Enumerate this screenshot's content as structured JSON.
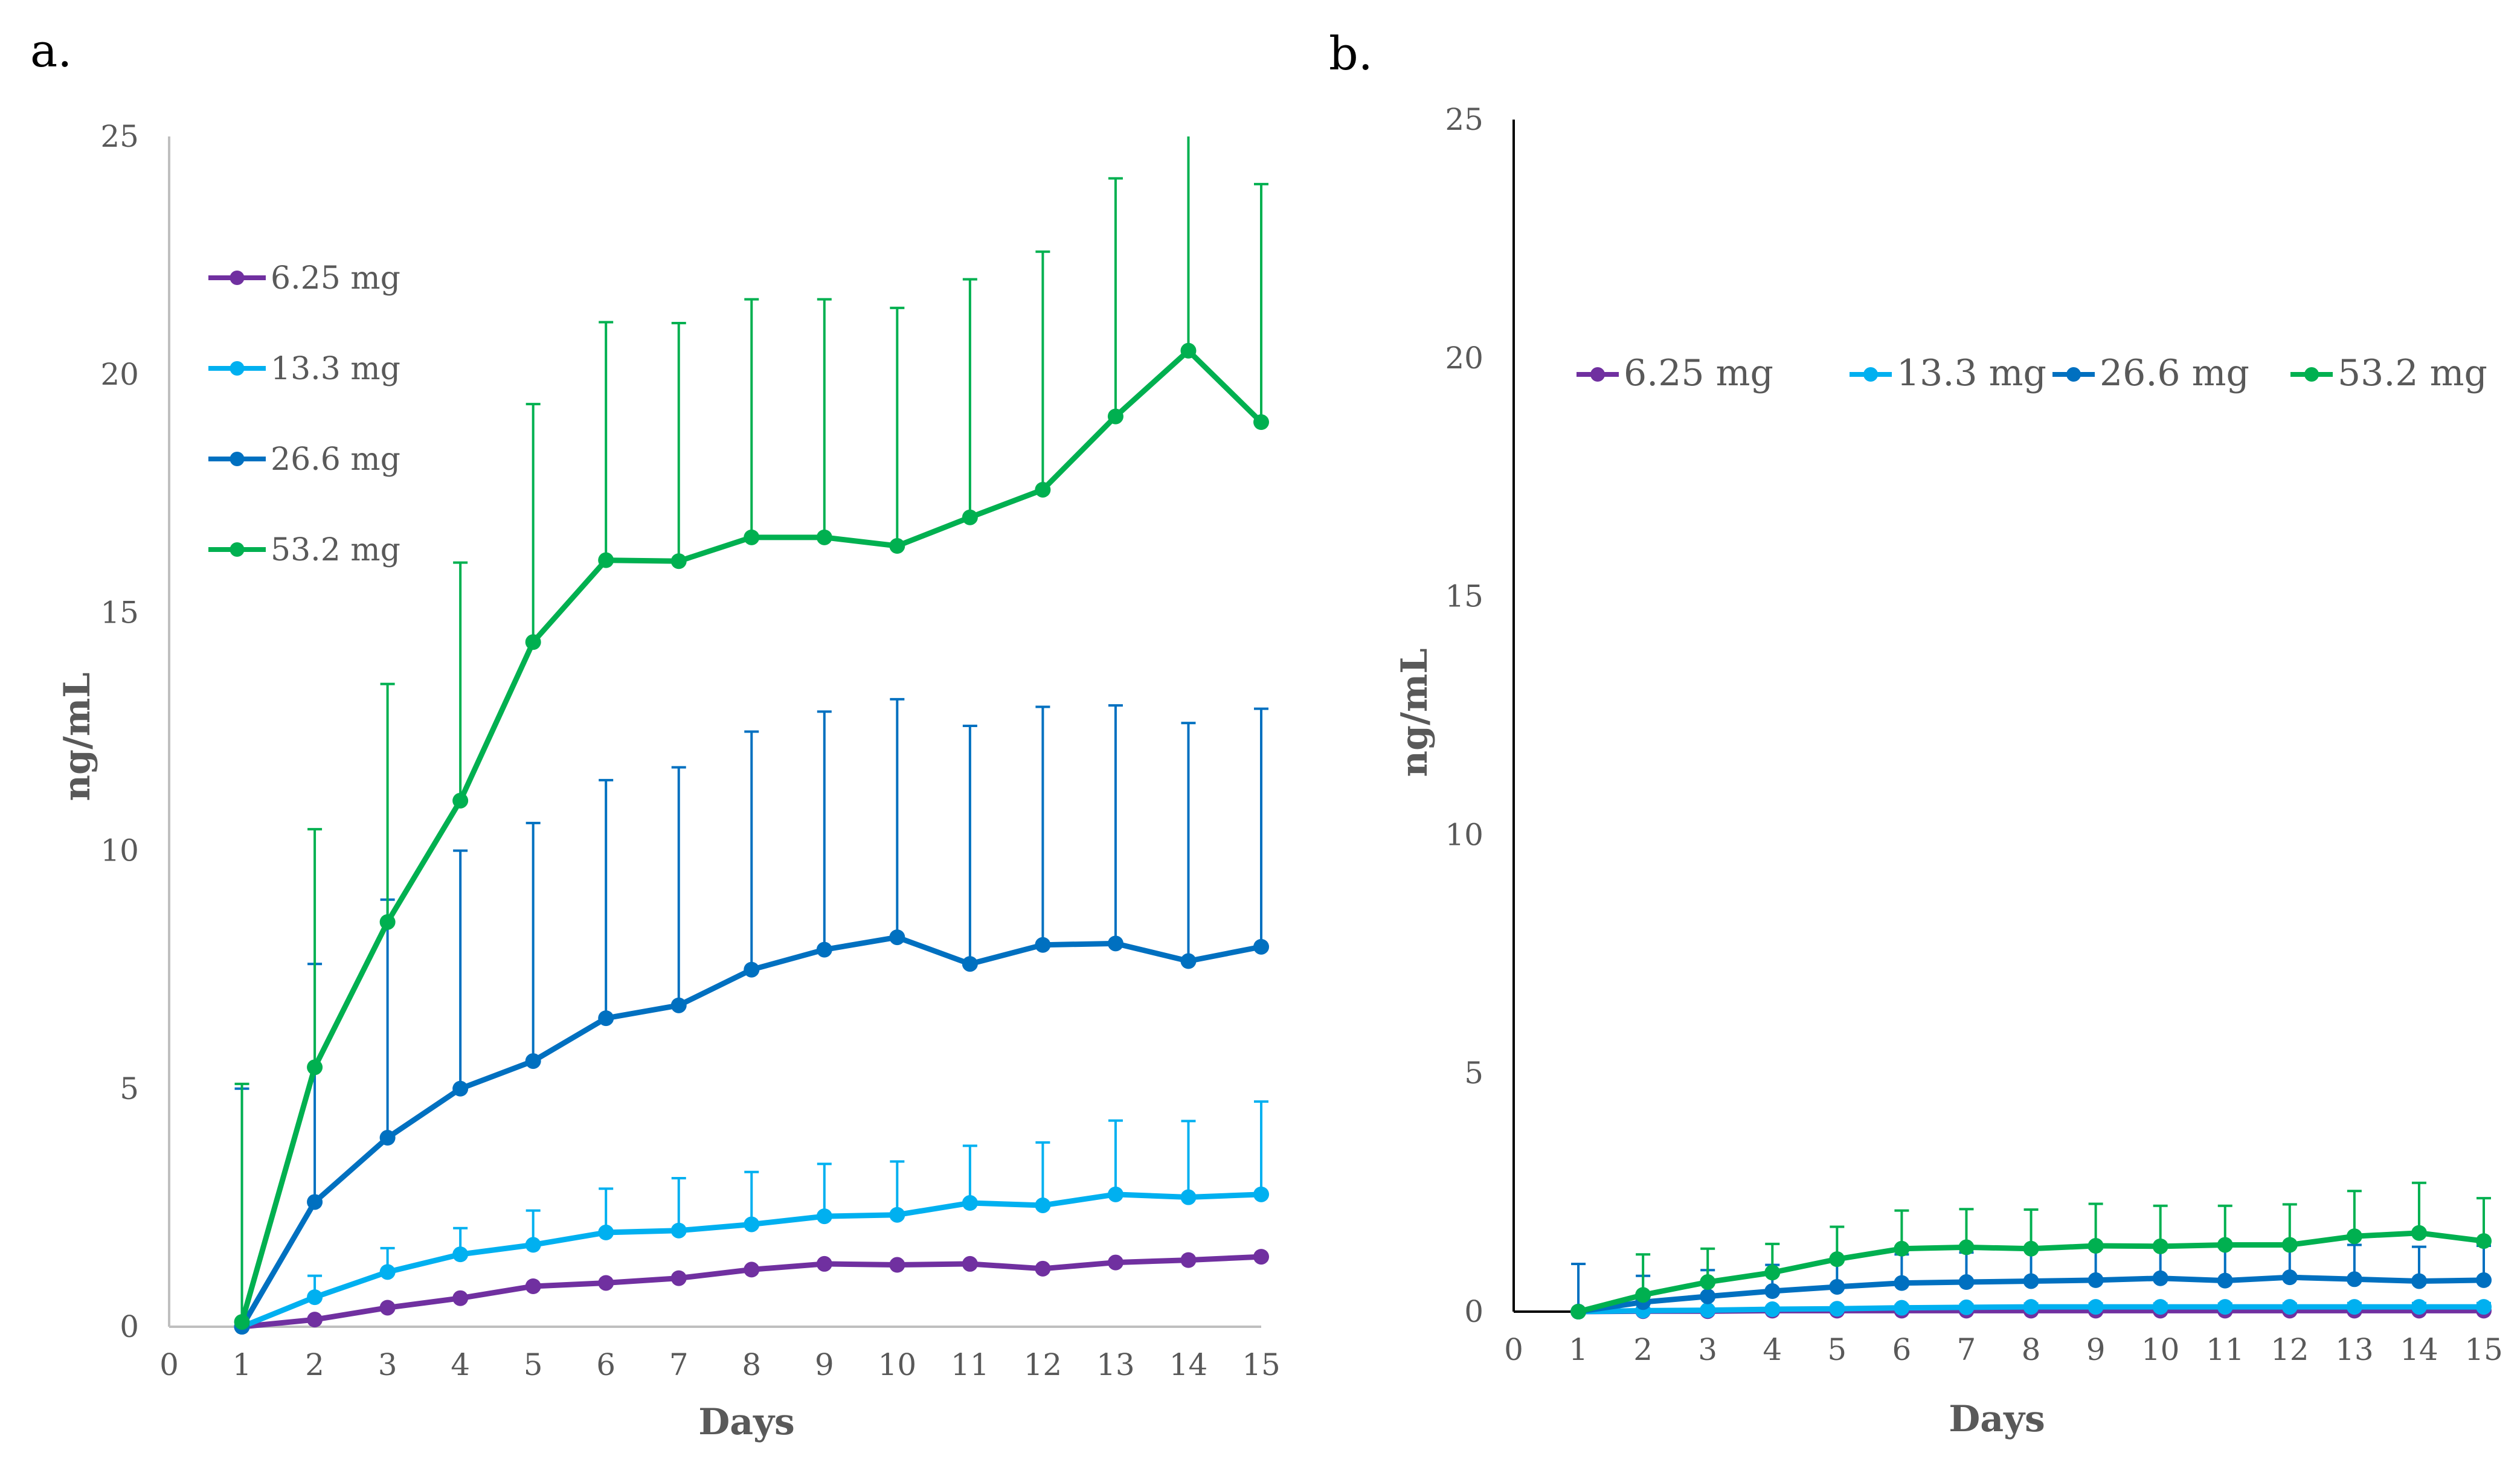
{
  "panels": {
    "a": {
      "label": "a."
    },
    "b": {
      "label": "b."
    }
  },
  "chart_data": [
    {
      "type": "line",
      "panel": "a.",
      "xlabel": "Days",
      "ylabel": "ng/mL",
      "xlim": [
        0,
        15
      ],
      "ylim": [
        0,
        25
      ],
      "x_ticks": [
        0,
        1,
        2,
        3,
        4,
        5,
        6,
        7,
        8,
        9,
        10,
        11,
        12,
        13,
        14,
        15
      ],
      "y_ticks": [
        0,
        5,
        10,
        15,
        20,
        25
      ],
      "grid": false,
      "legend_position": "left, vertical",
      "x": [
        1,
        2,
        3,
        4,
        5,
        6,
        7,
        8,
        9,
        10,
        11,
        12,
        13,
        14,
        15
      ],
      "series": [
        {
          "name": "6.25 mg",
          "color": "#7030A0",
          "values": [
            0,
            0.15,
            0.4,
            0.6,
            0.85,
            0.92,
            1.02,
            1.2,
            1.32,
            1.3,
            1.32,
            1.22,
            1.35,
            1.4,
            1.47
          ],
          "errors": [
            0,
            0,
            0,
            0,
            0,
            0,
            0,
            0,
            0,
            0,
            0,
            0,
            0,
            0,
            0
          ]
        },
        {
          "name": "13.3 mg",
          "color": "#00B0F0",
          "values": [
            0,
            0.62,
            1.15,
            1.52,
            1.72,
            1.98,
            2.02,
            2.15,
            2.32,
            2.35,
            2.6,
            2.55,
            2.78,
            2.72,
            2.78
          ],
          "errors": [
            0,
            0.45,
            0.5,
            0.55,
            0.72,
            0.92,
            1.1,
            1.1,
            1.1,
            1.12,
            1.2,
            1.32,
            1.55,
            1.6,
            1.95
          ]
        },
        {
          "name": "26.6 mg",
          "color": "#0070C0",
          "values": [
            0,
            2.62,
            3.97,
            5.0,
            5.58,
            6.48,
            6.75,
            7.5,
            7.92,
            8.18,
            7.62,
            8.02,
            8.05,
            7.68,
            7.98
          ],
          "errors": [
            5.0,
            5.0,
            5.0,
            5.0,
            5.0,
            5.0,
            5.0,
            5.0,
            5.0,
            5.0,
            5.0,
            5.0,
            5.0,
            5.0,
            5.0
          ]
        },
        {
          "name": "53.2 mg",
          "color": "#00B050",
          "values": [
            0.1,
            5.45,
            8.5,
            11.05,
            14.38,
            16.1,
            16.08,
            16.58,
            16.58,
            16.4,
            17.0,
            17.58,
            19.12,
            20.5,
            19.0
          ],
          "errors": [
            5.0,
            5.0,
            5.0,
            5.0,
            5.0,
            5.0,
            5.0,
            5.0,
            5.0,
            5.0,
            5.0,
            5.0,
            5.0,
            5.0,
            5.0
          ]
        }
      ]
    },
    {
      "type": "line",
      "panel": "b.",
      "xlabel": "Days",
      "ylabel": "ng/mL",
      "xlim": [
        0,
        15
      ],
      "ylim": [
        0,
        25
      ],
      "x_ticks": [
        0,
        1,
        2,
        3,
        4,
        5,
        6,
        7,
        8,
        9,
        10,
        11,
        12,
        13,
        14,
        15
      ],
      "y_ticks": [
        0,
        5,
        10,
        15,
        20,
        25
      ],
      "grid": false,
      "legend_position": "top, horizontal",
      "x": [
        1,
        2,
        3,
        4,
        5,
        6,
        7,
        8,
        9,
        10,
        11,
        12,
        13,
        14,
        15
      ],
      "series": [
        {
          "name": "6.25 mg",
          "color": "#7030A0",
          "values": [
            0,
            0.01,
            0.01,
            0.02,
            0.02,
            0.02,
            0.02,
            0.02,
            0.02,
            0.02,
            0.02,
            0.02,
            0.02,
            0.02,
            0.02
          ],
          "errors": [
            0,
            0,
            0,
            0,
            0,
            0,
            0,
            0,
            0,
            0,
            0,
            0,
            0,
            0,
            0
          ]
        },
        {
          "name": "13.3 mg",
          "color": "#00B0F0",
          "values": [
            0,
            0.02,
            0.03,
            0.05,
            0.06,
            0.08,
            0.09,
            0.1,
            0.1,
            0.1,
            0.1,
            0.1,
            0.1,
            0.1,
            0.1
          ],
          "errors": [
            0,
            0.05,
            0.05,
            0.05,
            0.06,
            0.06,
            0.06,
            0.07,
            0.07,
            0.07,
            0.07,
            0.07,
            0.08,
            0.08,
            0.08
          ]
        },
        {
          "name": "26.6 mg",
          "color": "#0070C0",
          "values": [
            0,
            0.2,
            0.32,
            0.43,
            0.52,
            0.6,
            0.62,
            0.64,
            0.66,
            0.7,
            0.65,
            0.72,
            0.68,
            0.64,
            0.66
          ],
          "errors": [
            1.0,
            0.55,
            0.55,
            0.55,
            0.55,
            0.6,
            0.62,
            0.64,
            0.66,
            0.68,
            0.7,
            0.7,
            0.72,
            0.72,
            0.72
          ]
        },
        {
          "name": "53.2 mg",
          "color": "#00B050",
          "values": [
            0,
            0.35,
            0.62,
            0.82,
            1.1,
            1.32,
            1.35,
            1.32,
            1.38,
            1.37,
            1.4,
            1.4,
            1.58,
            1.65,
            1.48
          ],
          "errors": [
            0,
            0.85,
            0.7,
            0.6,
            0.68,
            0.8,
            0.8,
            0.82,
            0.88,
            0.85,
            0.82,
            0.85,
            0.95,
            1.05,
            0.9
          ]
        }
      ]
    }
  ]
}
